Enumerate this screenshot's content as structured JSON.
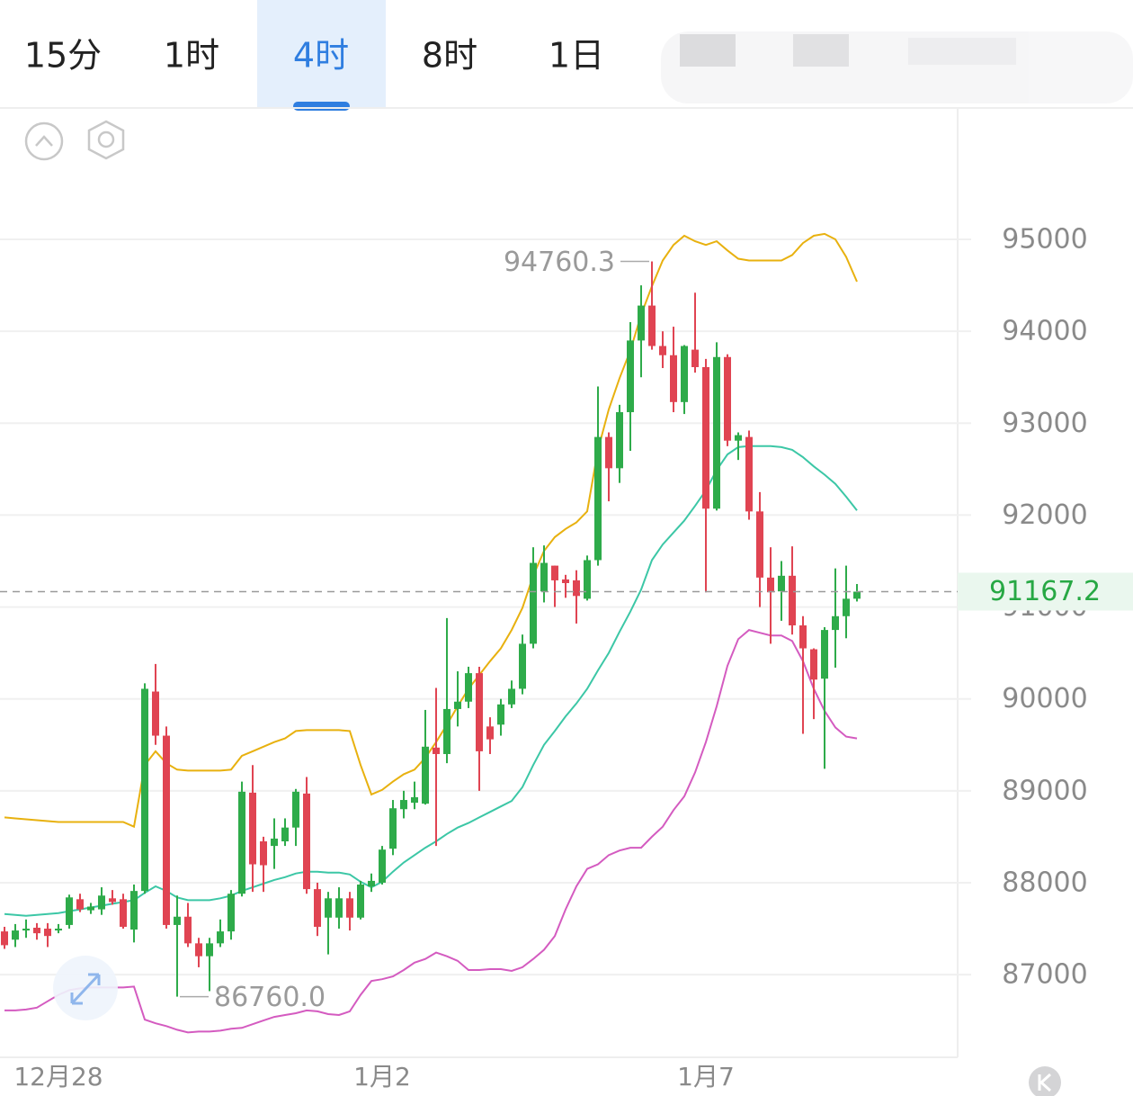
{
  "tabs": [
    "15分",
    "1时",
    "4时",
    "8时",
    "1日"
  ],
  "selected_tab": 2,
  "chart_data": {
    "type": "candlestick",
    "categories": [
      null,
      null,
      null,
      null,
      null,
      "12月28",
      null,
      null,
      null,
      null,
      null,
      null,
      null,
      null,
      null,
      null,
      null,
      null,
      null,
      null,
      null,
      null,
      null,
      null,
      null,
      null,
      null,
      null,
      null,
      null,
      null,
      null,
      null,
      null,
      null,
      "1月2",
      null,
      null,
      null,
      null,
      null,
      null,
      null,
      null,
      null,
      null,
      null,
      null,
      null,
      null,
      null,
      null,
      null,
      null,
      null,
      null,
      null,
      null,
      null,
      null,
      null,
      null,
      null,
      null,
      null,
      "1月7",
      null,
      null,
      null,
      null,
      null,
      null,
      null,
      null,
      null,
      null,
      null,
      null,
      null,
      null
    ],
    "open": [
      87470,
      87380,
      87480,
      87510,
      87500,
      87480,
      87540,
      87820,
      87700,
      87710,
      87830,
      87820,
      87490,
      87910,
      90080,
      89600,
      87540,
      87630,
      87340,
      87200,
      87340,
      87470,
      87880,
      88980,
      88450,
      88400,
      88450,
      88600,
      88970,
      87930,
      87620,
      87620,
      87830,
      87620,
      87960,
      88000,
      88370,
      88800,
      88870,
      88860,
      89470,
      89400,
      89890,
      89970,
      90280,
      89700,
      89720,
      89940,
      90110,
      90600,
      91170,
      91450,
      91300,
      91290,
      91090,
      91510,
      92850,
      92510,
      93120,
      93900,
      94280,
      93840,
      93740,
      93230,
      93800,
      93610,
      92070,
      93720,
      92810,
      92850,
      92040,
      91320,
      91170,
      91340,
      90800,
      90540,
      90220,
      90750,
      90900,
      91090
    ],
    "high": [
      87520,
      87550,
      87600,
      87560,
      87560,
      87550,
      87870,
      87880,
      87780,
      87950,
      87920,
      87880,
      87980,
      90170,
      90380,
      89700,
      87860,
      87780,
      87400,
      87400,
      87600,
      87920,
      89100,
      89280,
      88500,
      88700,
      88700,
      89020,
      89150,
      88000,
      87900,
      87950,
      87900,
      88020,
      88100,
      88400,
      88900,
      89000,
      89100,
      89880,
      90120,
      90880,
      90300,
      90350,
      90350,
      89800,
      90000,
      90200,
      90700,
      91650,
      91670,
      91450,
      91350,
      91400,
      91560,
      93400,
      92900,
      93200,
      94100,
      94500,
      94760.3,
      94000,
      94050,
      93850,
      94420,
      93700,
      93880,
      93750,
      92900,
      92920,
      92250,
      91650,
      91500,
      91660,
      90900,
      90550,
      90780,
      91420,
      91450,
      91250
    ],
    "low": [
      87280,
      87300,
      87400,
      87380,
      87300,
      87450,
      87500,
      87680,
      87660,
      87650,
      87760,
      87500,
      87350,
      87880,
      89500,
      87500,
      86760,
      87300,
      87080,
      86820,
      87300,
      87380,
      87850,
      87900,
      87900,
      88150,
      88400,
      88400,
      87880,
      87420,
      87220,
      87500,
      87480,
      87600,
      87900,
      87980,
      88300,
      88700,
      88800,
      88850,
      88400,
      89300,
      89700,
      89900,
      89000,
      89400,
      89600,
      89900,
      90050,
      90550,
      91050,
      91000,
      91100,
      90820,
      91070,
      91450,
      92150,
      92350,
      92700,
      93500,
      93800,
      93600,
      93120,
      93100,
      93550,
      91160,
      92050,
      92750,
      92600,
      91950,
      91000,
      90600,
      90850,
      90700,
      89620,
      89780,
      89240,
      90340,
      90660,
      91060
    ],
    "close": [
      87320,
      87480,
      87500,
      87450,
      87420,
      87500,
      87840,
      87710,
      87740,
      87860,
      87790,
      87520,
      87910,
      90110,
      89600,
      87540,
      87630,
      87340,
      87200,
      87340,
      87470,
      87880,
      88990,
      88200,
      88190,
      88480,
      88600,
      88990,
      87930,
      87520,
      87830,
      87830,
      87620,
      87980,
      88020,
      88360,
      88810,
      88900,
      88930,
      89480,
      89400,
      89890,
      89970,
      90280,
      89430,
      89560,
      89940,
      90110,
      90600,
      91480,
      91480,
      91290,
      91260,
      91120,
      91510,
      92850,
      92510,
      93120,
      93900,
      94280,
      93840,
      93740,
      93230,
      93840,
      93610,
      92070,
      93720,
      92810,
      92870,
      92040,
      91320,
      91160,
      91340,
      90800,
      90550,
      90210,
      90750,
      90900,
      91090,
      91167.2
    ],
    "up_color": "#2eab4a",
    "down_color": "#e04452",
    "series": [
      {
        "color": "#e8b10f",
        "values": [
          88710,
          88700,
          88690,
          88680,
          88670,
          88660,
          88660,
          88660,
          88660,
          88660,
          88660,
          88660,
          88610,
          89280,
          89430,
          89300,
          89230,
          89220,
          89220,
          89220,
          89220,
          89230,
          89380,
          89430,
          89480,
          89530,
          89570,
          89650,
          89660,
          89660,
          89660,
          89660,
          89650,
          89280,
          88960,
          89010,
          89100,
          89180,
          89230,
          89360,
          89530,
          89720,
          89920,
          90110,
          90260,
          90410,
          90550,
          90750,
          90990,
          91340,
          91610,
          91760,
          91850,
          91920,
          92040,
          92710,
          93150,
          93490,
          93790,
          94180,
          94490,
          94770,
          94940,
          95040,
          94980,
          94940,
          94980,
          94880,
          94790,
          94770,
          94770,
          94770,
          94770,
          94830,
          94960,
          95040,
          95060,
          95000,
          94810,
          94540
        ]
      },
      {
        "color": "#3cc7a6",
        "values": [
          87660,
          87650,
          87640,
          87650,
          87660,
          87670,
          87690,
          87710,
          87730,
          87750,
          87770,
          87790,
          87810,
          87890,
          87960,
          87910,
          87840,
          87810,
          87810,
          87810,
          87830,
          87860,
          87910,
          87950,
          87990,
          88030,
          88060,
          88100,
          88120,
          88120,
          88110,
          88110,
          88090,
          88010,
          87950,
          88010,
          88120,
          88220,
          88300,
          88380,
          88450,
          88530,
          88600,
          88650,
          88710,
          88770,
          88830,
          88890,
          89040,
          89280,
          89500,
          89650,
          89810,
          89950,
          90110,
          90310,
          90500,
          90730,
          90950,
          91190,
          91510,
          91680,
          91810,
          91940,
          92100,
          92270,
          92490,
          92660,
          92740,
          92750,
          92750,
          92750,
          92740,
          92710,
          92630,
          92530,
          92440,
          92340,
          92200,
          92050
        ]
      },
      {
        "color": "#d45bc0",
        "values": [
          86610,
          86610,
          86620,
          86640,
          86710,
          86780,
          86830,
          86850,
          86860,
          86860,
          86860,
          86860,
          86870,
          86510,
          86470,
          86440,
          86400,
          86370,
          86380,
          86380,
          86390,
          86410,
          86420,
          86460,
          86500,
          86540,
          86560,
          86580,
          86610,
          86600,
          86570,
          86560,
          86600,
          86780,
          86930,
          86950,
          86980,
          87050,
          87130,
          87170,
          87240,
          87200,
          87150,
          87050,
          87050,
          87060,
          87060,
          87040,
          87080,
          87170,
          87270,
          87420,
          87710,
          87960,
          88150,
          88200,
          88300,
          88350,
          88380,
          88380,
          88500,
          88610,
          88790,
          88940,
          89200,
          89530,
          89920,
          90360,
          90650,
          90750,
          90720,
          90690,
          90690,
          90630,
          90410,
          90110,
          89870,
          89690,
          89590,
          89570
        ]
      }
    ],
    "ylim": [
      86100,
      96430
    ],
    "yticks": [
      87000,
      88000,
      89000,
      90000,
      91000,
      92000,
      93000,
      94000,
      95000
    ],
    "grid": true,
    "last_price": 91167.2,
    "last_price_color": "#27a844",
    "max_marker": 94760.3,
    "min_marker": {
      "value": 86760,
      "label": "86760.0"
    }
  }
}
